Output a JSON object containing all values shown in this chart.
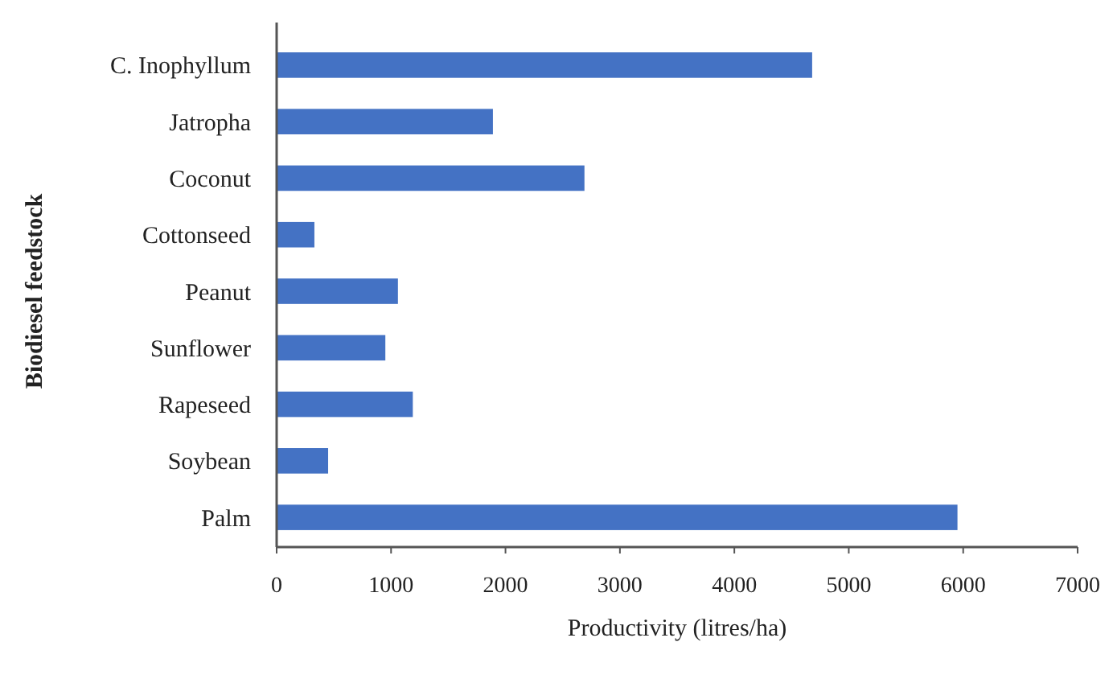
{
  "chart_data": {
    "type": "bar",
    "orientation": "horizontal",
    "xlabel": "Productivity (litres/ha)",
    "ylabel": "Biodiesel feedstock",
    "categories": [
      "C. Inophyllum",
      "Jatropha",
      "Coconut",
      "Cottonseed",
      "Peanut",
      "Sunflower",
      "Rapeseed",
      "Soybean",
      "Palm"
    ],
    "values": [
      4680,
      1890,
      2690,
      330,
      1060,
      950,
      1190,
      450,
      5950
    ],
    "color": "#4472c4",
    "xlim": [
      0,
      7000
    ],
    "xticks": [
      0,
      1000,
      2000,
      3000,
      4000,
      5000,
      6000,
      7000
    ],
    "grid": false
  }
}
